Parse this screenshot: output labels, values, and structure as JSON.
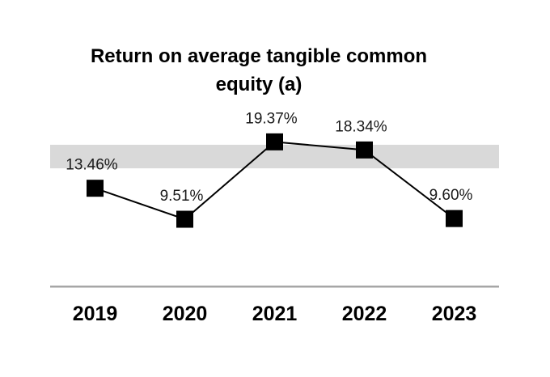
{
  "chart_data": {
    "type": "line",
    "title": "Return on average tangible common equity (a)",
    "categories": [
      "2019",
      "2020",
      "2021",
      "2022",
      "2023"
    ],
    "values": [
      13.46,
      9.51,
      19.37,
      18.34,
      9.6
    ],
    "point_labels": [
      "13.46%",
      "9.51%",
      "19.37%",
      "18.34%",
      "9.60%"
    ],
    "xlabel": "",
    "ylabel": "",
    "legend_position": "none",
    "y_axis_visible": false,
    "grid": false,
    "marker_shape": "square",
    "marker_color": "#000000",
    "line_color": "#000000",
    "reference_band": {
      "from": 16,
      "to": 19,
      "color": "#d9d9d9"
    },
    "baseline_color": "#a6a6a6",
    "text_color": "#000000"
  }
}
